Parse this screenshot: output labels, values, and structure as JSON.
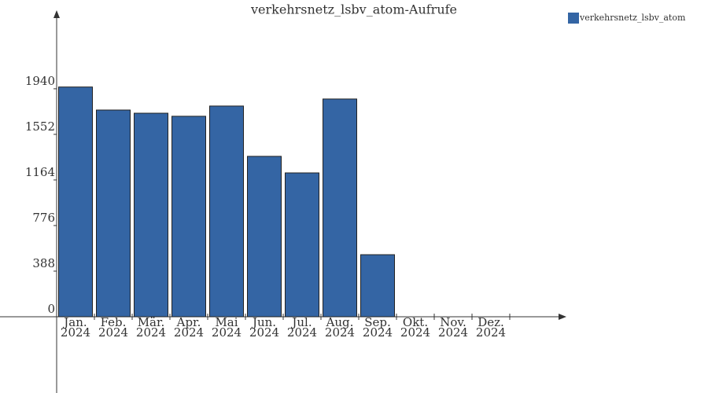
{
  "chart_data": {
    "type": "bar",
    "title": "verkehrsnetz_lsbv_atom-Aufrufe",
    "categories": [
      [
        "Jan.",
        "2024"
      ],
      [
        "Feb.",
        "2024"
      ],
      [
        "Mär.",
        "2024"
      ],
      [
        "Apr.",
        "2024"
      ],
      [
        "Mai",
        "2024"
      ],
      [
        "Jun.",
        "2024"
      ],
      [
        "Jul.",
        "2024"
      ],
      [
        "Aug.",
        "2024"
      ],
      [
        "Sep.",
        "2024"
      ],
      [
        "Okt.",
        "2024"
      ],
      [
        "Nov.",
        "2024"
      ],
      [
        "Dez.",
        "2024"
      ]
    ],
    "series": [
      {
        "name": "verkehrsnetz_lsbv_atom",
        "color": "#3465a4",
        "values": [
          1955,
          1759,
          1732,
          1706,
          1793,
          1365,
          1224,
          1853,
          528,
          0,
          0,
          0
        ]
      }
    ],
    "ylim": [
      -649,
      2595
    ],
    "yticks": [
      0,
      388,
      776,
      1164,
      1552,
      1940
    ],
    "legend": "top-right"
  }
}
